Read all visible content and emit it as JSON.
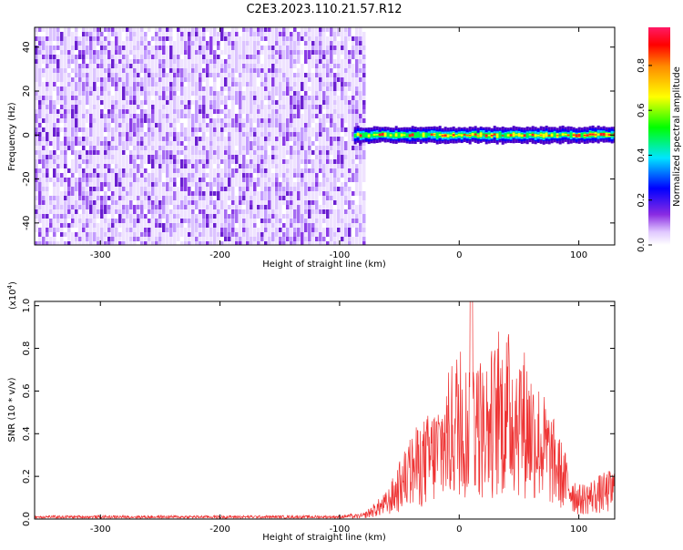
{
  "title": "C2E3.2023.110.21.57.R12",
  "colorbar": {
    "label": "Normalized spectral amplitude",
    "ticks": [
      "0.0",
      "0.2",
      "0.4",
      "0.6",
      "0.8"
    ],
    "tick_values": [
      0.0,
      0.2,
      0.4,
      0.6,
      0.8
    ],
    "range": [
      0,
      0.97
    ]
  },
  "chart_data": [
    {
      "type": "heatmap",
      "name": "spectrogram",
      "xlabel": "Height of straight line (km)",
      "ylabel": "Frequency (Hz)",
      "xlim": [
        -355,
        130
      ],
      "ylim": [
        -50,
        49
      ],
      "x_ticks": [
        -300,
        -200,
        -100,
        0,
        100
      ],
      "x_tick_labels": [
        "-300",
        "-200",
        "-100",
        "0",
        "100"
      ],
      "y_ticks": [
        -40,
        -20,
        0,
        20,
        40
      ],
      "y_tick_labels": [
        "-40",
        "-20",
        "0",
        "20",
        "40"
      ],
      "noise_region_x": [
        -355,
        -80
      ],
      "signal_region_x": [
        -88,
        130
      ],
      "signal_center_hz": 0
    },
    {
      "type": "line",
      "name": "snr",
      "xlabel": "Height of straight line (km)",
      "ylabel": "SNR (10 * v/v)",
      "scale_label": "(x10",
      "scale_exponent": "4",
      "scale_close": ")",
      "xlim": [
        -355,
        130
      ],
      "ylim": [
        0,
        1.02
      ],
      "x_ticks": [
        -300,
        -200,
        -100,
        0,
        100
      ],
      "x_tick_labels": [
        "-300",
        "-200",
        "-100",
        "0",
        "100"
      ],
      "y_ticks": [
        0.0,
        0.2,
        0.4,
        0.6,
        0.8,
        1.0
      ],
      "y_tick_labels": [
        "0.0",
        "0.2",
        "0.4",
        "0.6",
        "0.8",
        "1.0"
      ],
      "color": "#ee3333",
      "envelope_x": [
        -355,
        -100,
        -80,
        -60,
        -50,
        -40,
        -30,
        -20,
        -10,
        0,
        5,
        10,
        15,
        20,
        30,
        40,
        50,
        60,
        70,
        80,
        90,
        100,
        110,
        120,
        130
      ],
      "envelope_y": [
        0.01,
        0.01,
        0.02,
        0.1,
        0.2,
        0.3,
        0.35,
        0.4,
        0.5,
        0.62,
        0.55,
        0.6,
        0.6,
        0.55,
        0.62,
        0.66,
        0.64,
        0.55,
        0.45,
        0.34,
        0.22,
        0.12,
        0.14,
        0.16,
        0.18
      ]
    }
  ]
}
